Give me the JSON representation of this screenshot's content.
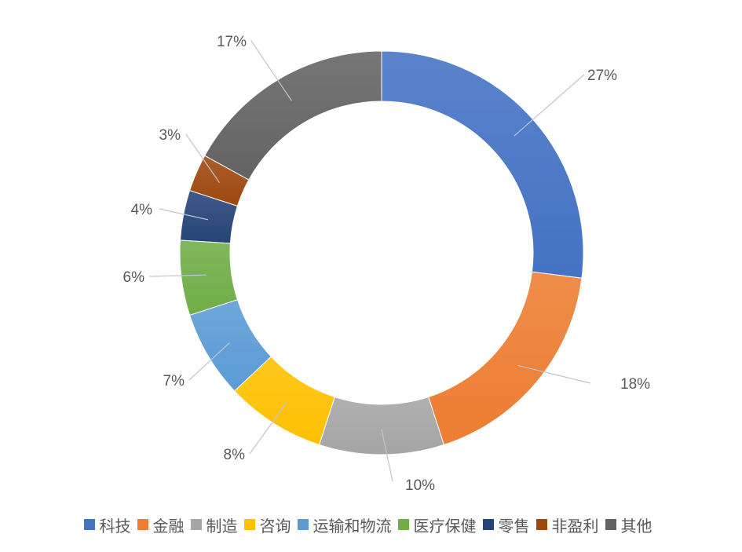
{
  "chart_data": {
    "type": "pie",
    "subtype": "donut",
    "categories": [
      "科技",
      "金融",
      "制造",
      "咨询",
      "运输和物流",
      "医疗保健",
      "零售",
      "非盈利",
      "其他"
    ],
    "values": [
      27,
      18,
      10,
      8,
      7,
      6,
      4,
      3,
      17
    ],
    "labels": [
      "27%",
      "18%",
      "10%",
      "8%",
      "7%",
      "6%",
      "4%",
      "3%",
      "17%"
    ],
    "colors": [
      "#4472C4",
      "#ED7D31",
      "#A5A5A5",
      "#FFC000",
      "#5B9BD5",
      "#70AD47",
      "#264478",
      "#9E480E",
      "#636363"
    ],
    "legend_position": "bottom"
  }
}
